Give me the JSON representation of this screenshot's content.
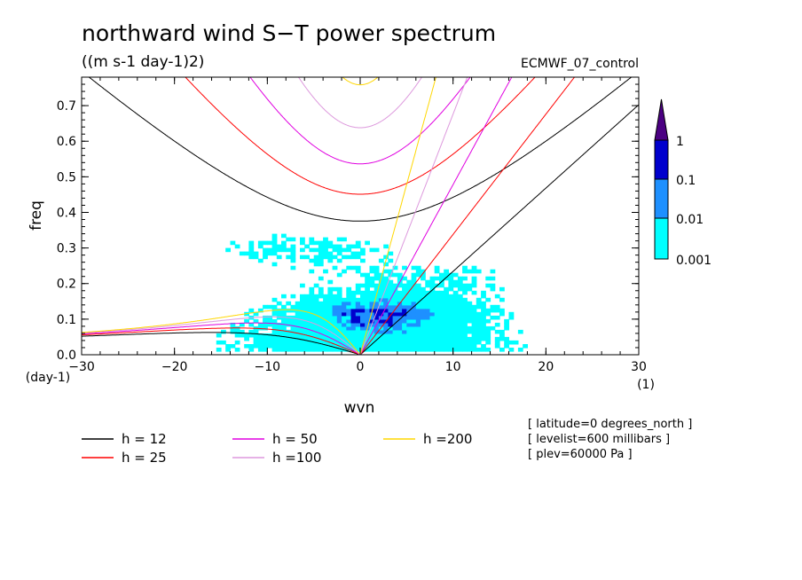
{
  "title": "northward wind S−T power spectrum",
  "units": "((m s-1 day-1)2)",
  "run_label": "ECMWF_07_control",
  "metadata": [
    "[ latitude=0 degrees_north ]",
    "[ levelist=600 millibars ]",
    "[ plev=60000 Pa ]"
  ],
  "chart_data": {
    "type": "heatmap",
    "title": "northward wind S−T power spectrum",
    "subtitle": "((m s-1 day-1)2)",
    "xlabel": "wvn",
    "ylabel": "freq",
    "x_unit": "(1)",
    "y_unit": "(day-1)",
    "xlim": [
      -30,
      30
    ],
    "ylim": [
      0,
      0.78
    ],
    "x_ticks": [
      -30,
      -20,
      -10,
      0,
      10,
      20,
      30
    ],
    "x_tick_labels": [
      "−30",
      "−20",
      "−10",
      "0",
      "10",
      "20",
      "30"
    ],
    "y_ticks": [
      0.0,
      0.1,
      0.2,
      0.3,
      0.4,
      0.5,
      0.6,
      0.7
    ],
    "y_tick_labels": [
      "0.0",
      "0.1",
      "0.2",
      "0.3",
      "0.4",
      "0.5",
      "0.6",
      "0.7"
    ],
    "contour_levels": [
      0.001,
      0.01,
      0.1,
      1
    ],
    "colorbar": {
      "labels": [
        "0.001",
        "0.01",
        "0.1",
        "1"
      ],
      "colors": [
        "#00ffff",
        "#1e90ff",
        "#0000cd",
        "#4b0082"
      ]
    },
    "power_regions": [
      {
        "level": 0.001,
        "x": [
          -28,
          24
        ],
        "y": [
          0.0,
          0.37
        ]
      },
      {
        "level": 0.01,
        "x": [
          -6,
          10
        ],
        "y": [
          0.0,
          0.2
        ]
      },
      {
        "level": 0.1,
        "x": [
          -4,
          8
        ],
        "y": [
          0.05,
          0.16
        ]
      }
    ],
    "dispersion_curves": [
      {
        "name": "h = 12",
        "equivalent_depth_m": 12,
        "color": "#000000"
      },
      {
        "name": "h = 25",
        "equivalent_depth_m": 25,
        "color": "#ff0000"
      },
      {
        "name": "h = 50",
        "equivalent_depth_m": 50,
        "color": "#e000e0"
      },
      {
        "name": "h =100",
        "equivalent_depth_m": 100,
        "color": "#dd99dd"
      },
      {
        "name": "h =200",
        "equivalent_depth_m": 200,
        "color": "#ffd700"
      }
    ]
  }
}
